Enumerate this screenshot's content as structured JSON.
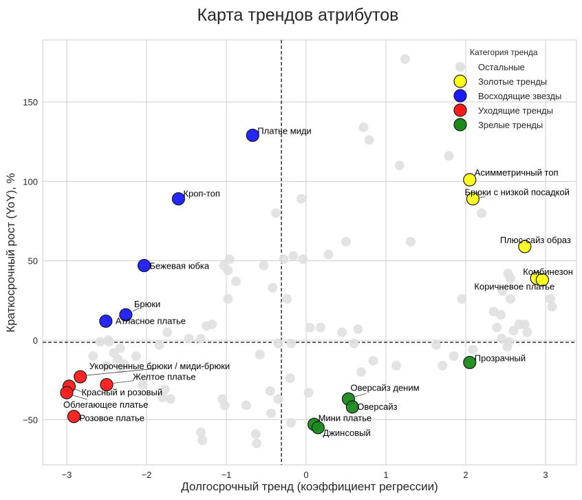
{
  "chart_data": {
    "type": "scatter",
    "title": "Карта трендов атрибутов",
    "xlabel": "Долгосрочный тренд (коэффициент регрессии)",
    "ylabel": "Краткосрочный рост (YoY), %",
    "xlim": [
      -3.3,
      3.4
    ],
    "ylim": [
      -78,
      189
    ],
    "x_ticks": [
      -3,
      -2,
      -1,
      0,
      1,
      2,
      3
    ],
    "x_tick_labels": [
      "−3",
      "−2",
      "−1",
      "0",
      "1",
      "2",
      "3"
    ],
    "y_ticks": [
      -50,
      0,
      50,
      100,
      150
    ],
    "y_tick_labels": [
      "−50",
      "0",
      "50",
      "100",
      "150"
    ],
    "grid": true,
    "reference_lines": {
      "x": -0.31,
      "y": -1.3
    },
    "legend": {
      "title": "Категория тренда",
      "placement": "top-right",
      "entries": [
        {
          "label": "Остальные",
          "color": "#e0e0e0"
        },
        {
          "label": "Золотые тренды",
          "color": "#ffff1a"
        },
        {
          "label": "Восходящие звезды",
          "color": "#1a1aff"
        },
        {
          "label": "Уходящие тренды",
          "color": "#ff1a1a"
        },
        {
          "label": "Зрелые тренды",
          "color": "#1a8a1a"
        }
      ]
    },
    "series": [
      {
        "name": "Золотые тренды",
        "color": "#ffff1a",
        "points": [
          {
            "label": "Асимметричный топ",
            "x": 2.05,
            "y": 101
          },
          {
            "label": "Брюки с низкой посадкой",
            "x": 2.09,
            "y": 89
          },
          {
            "label": "Плюс-сайз образ",
            "x": 2.74,
            "y": 59
          },
          {
            "label": "Комбинезон",
            "x": 2.89,
            "y": 39
          },
          {
            "label": "Коричневое платье",
            "x": 2.96,
            "y": 38
          }
        ]
      },
      {
        "name": "Восходящие звезды",
        "color": "#1a1aff",
        "points": [
          {
            "label": "Платье миди",
            "x": -0.67,
            "y": 129
          },
          {
            "label": "Кроп-топ",
            "x": -1.6,
            "y": 89
          },
          {
            "label": "Бежевая юбка",
            "x": -2.03,
            "y": 47
          },
          {
            "label": "Брюки",
            "x": -2.26,
            "y": 16
          },
          {
            "label": "Атласное платье",
            "x": -2.51,
            "y": 12
          }
        ]
      },
      {
        "name": "Уходящие тренды",
        "color": "#ff1a1a",
        "points": [
          {
            "label": "Укороченные брюки / миди-брюки",
            "x": -2.83,
            "y": -23
          },
          {
            "label": "Желтое платье",
            "x": -2.5,
            "y": -28
          },
          {
            "label": "Красный и розовый",
            "x": -2.97,
            "y": -29
          },
          {
            "label": "Облегающее платье",
            "x": -3.0,
            "y": -33
          },
          {
            "label": "Розовое платье",
            "x": -2.91,
            "y": -48
          }
        ]
      },
      {
        "name": "Зрелые тренды",
        "color": "#1a8a1a",
        "points": [
          {
            "label": "Прозрачный",
            "x": 2.05,
            "y": -14
          },
          {
            "label": "Оверсайз деним",
            "x": 0.53,
            "y": -37
          },
          {
            "label": "Оверсайз",
            "x": 0.58,
            "y": -42
          },
          {
            "label": "Мини платье",
            "x": 0.1,
            "y": -53
          },
          {
            "label": "Джинсовый",
            "x": 0.15,
            "y": -55
          }
        ]
      },
      {
        "name": "Остальные",
        "color": "#e0e0e0",
        "points": [
          {
            "x": 1.24,
            "y": 177
          },
          {
            "x": 0.72,
            "y": 134
          },
          {
            "x": 0.79,
            "y": 126
          },
          {
            "x": 1.79,
            "y": 116
          },
          {
            "x": 1.17,
            "y": 110
          },
          {
            "x": 2.2,
            "y": 80
          },
          {
            "x": -0.06,
            "y": 89
          },
          {
            "x": -0.38,
            "y": 80
          },
          {
            "x": 1.31,
            "y": 62
          },
          {
            "x": 0.5,
            "y": 62
          },
          {
            "x": 0.28,
            "y": 54
          },
          {
            "x": -0.16,
            "y": 53
          },
          {
            "x": -0.04,
            "y": 51
          },
          {
            "x": -0.28,
            "y": 51
          },
          {
            "x": -0.96,
            "y": 51
          },
          {
            "x": -1.03,
            "y": 47
          },
          {
            "x": -0.98,
            "y": 44
          },
          {
            "x": -0.53,
            "y": 47
          },
          {
            "x": -0.88,
            "y": 37
          },
          {
            "x": -0.42,
            "y": 33
          },
          {
            "x": -0.98,
            "y": 26
          },
          {
            "x": -0.24,
            "y": 26
          },
          {
            "x": 0.05,
            "y": 8
          },
          {
            "x": 0.18,
            "y": 8
          },
          {
            "x": 0.45,
            "y": 5
          },
          {
            "x": 0.65,
            "y": 7
          },
          {
            "x": -0.35,
            "y": -2
          },
          {
            "x": 0.6,
            "y": -2
          },
          {
            "x": -0.58,
            "y": -9
          },
          {
            "x": -0.19,
            "y": -2
          },
          {
            "x": 0.84,
            "y": -13
          },
          {
            "x": 1.13,
            "y": -16
          },
          {
            "x": 0.69,
            "y": -20
          },
          {
            "x": -0.2,
            "y": -24
          },
          {
            "x": -0.45,
            "y": -32
          },
          {
            "x": 0.03,
            "y": -33
          },
          {
            "x": -0.35,
            "y": -37
          },
          {
            "x": -1.05,
            "y": -37
          },
          {
            "x": -1.02,
            "y": -41
          },
          {
            "x": -0.75,
            "y": -41
          },
          {
            "x": -0.44,
            "y": -46
          },
          {
            "x": -0.19,
            "y": -52
          },
          {
            "x": -1.32,
            "y": -58
          },
          {
            "x": -1.3,
            "y": -63
          },
          {
            "x": -0.63,
            "y": -59
          },
          {
            "x": -0.62,
            "y": -65
          },
          {
            "x": -1.18,
            "y": 10
          },
          {
            "x": -1.25,
            "y": 9
          },
          {
            "x": -1.74,
            "y": 5
          },
          {
            "x": -1.32,
            "y": 1
          },
          {
            "x": -2.48,
            "y": 0
          },
          {
            "x": -2.58,
            "y": -1
          },
          {
            "x": -2.47,
            "y": -1
          },
          {
            "x": -1.47,
            "y": 1
          },
          {
            "x": -1.84,
            "y": -3
          },
          {
            "x": -2.33,
            "y": -5
          },
          {
            "x": -2.41,
            "y": -8
          },
          {
            "x": -2.67,
            "y": -10
          },
          {
            "x": -2.36,
            "y": -12
          },
          {
            "x": -2.13,
            "y": -10
          },
          {
            "x": -2.28,
            "y": -15
          },
          {
            "x": -2.32,
            "y": -18
          },
          {
            "x": -2.5,
            "y": -16
          },
          {
            "x": -2.05,
            "y": -28
          },
          {
            "x": -1.77,
            "y": -31
          },
          {
            "x": -1.8,
            "y": -36
          },
          {
            "x": -1.7,
            "y": -37
          },
          {
            "x": 2.53,
            "y": 42
          },
          {
            "x": 2.56,
            "y": 39
          },
          {
            "x": 2.46,
            "y": 31
          },
          {
            "x": 1.95,
            "y": 26
          },
          {
            "x": 2.56,
            "y": 26
          },
          {
            "x": 3.06,
            "y": 26
          },
          {
            "x": 3.08,
            "y": 21
          },
          {
            "x": 2.35,
            "y": 18
          },
          {
            "x": 2.44,
            "y": 16
          },
          {
            "x": 2.39,
            "y": 8
          },
          {
            "x": 2.67,
            "y": 10
          },
          {
            "x": 2.74,
            "y": 10
          },
          {
            "x": 2.6,
            "y": 6
          },
          {
            "x": 2.77,
            "y": 5
          },
          {
            "x": 2.45,
            "y": 1
          },
          {
            "x": 2.54,
            "y": -1
          },
          {
            "x": 2.52,
            "y": -4
          },
          {
            "x": 2.09,
            "y": -6
          },
          {
            "x": 1.63,
            "y": -3
          },
          {
            "x": 1.85,
            "y": -10
          },
          {
            "x": 1.71,
            "y": -16
          }
        ]
      }
    ]
  }
}
